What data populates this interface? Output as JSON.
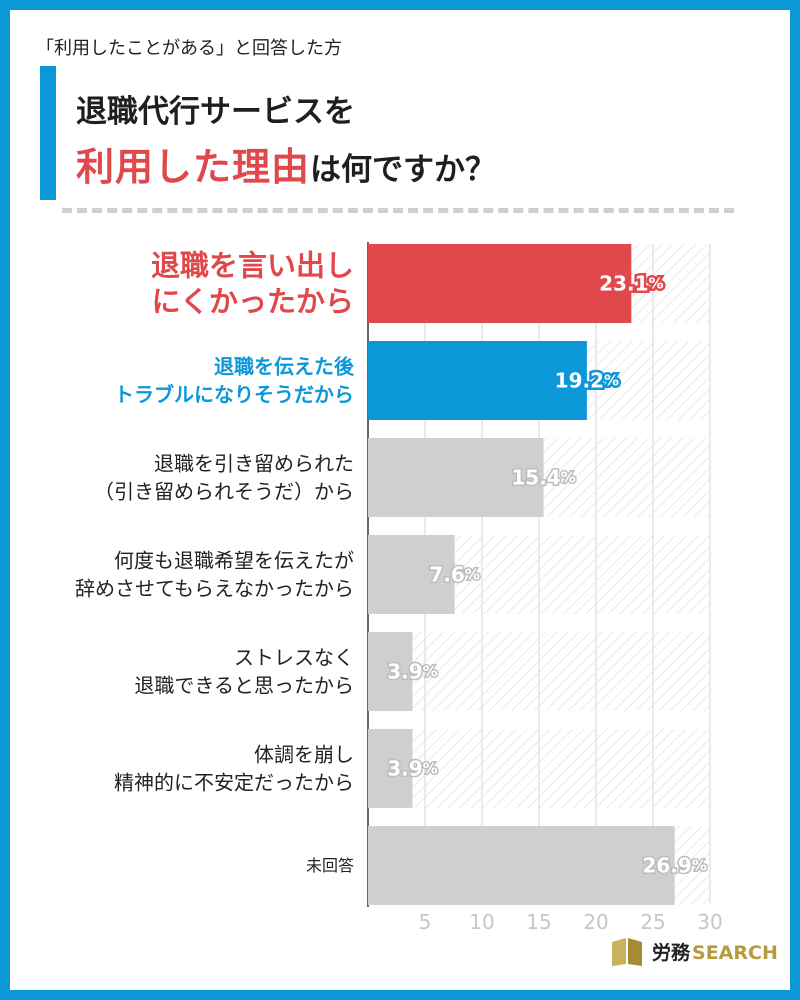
{
  "header": {
    "subtitle": "「利用したことがある」と回答した方",
    "title_line1": "退職代行サービスを",
    "title_line2_highlight": "利用した理由",
    "title_line2_rest": "は何ですか？"
  },
  "colors": {
    "frame": "#0b97d8",
    "highlight_red": "#e0484b",
    "highlight_blue": "#0b97d8",
    "bar_gray": "#cfcfcf"
  },
  "chart_data": {
    "type": "bar",
    "orientation": "horizontal",
    "categories": [
      [
        "退職を言い出し",
        "にくかったから"
      ],
      [
        "退職を伝えた後",
        "トラブルになりそうだから"
      ],
      [
        "退職を引き留められた",
        "（引き留められそうだ）から"
      ],
      [
        "何度も退職希望を伝えたが",
        "辞めさせてもらえなかったから"
      ],
      [
        "ストレスなく",
        "退職できると思ったから"
      ],
      [
        "体調を崩し",
        "精神的に不安定だったから"
      ],
      [
        "未回答"
      ]
    ],
    "values": [
      23.1,
      19.2,
      15.4,
      7.6,
      3.9,
      3.9,
      26.9
    ],
    "value_labels": [
      "23.1",
      "19.2",
      "15.4",
      "7.6",
      "3.9",
      "3.9",
      "26.9"
    ],
    "unit": "%",
    "bar_colors": [
      "#e0484b",
      "#0b97d8",
      "#cfcfcf",
      "#cfcfcf",
      "#cfcfcf",
      "#cfcfcf",
      "#cfcfcf"
    ],
    "label_colors": [
      "#e0484b",
      "#0b97d8",
      "#222222",
      "#222222",
      "#222222",
      "#222222",
      "#222222"
    ],
    "xlim": [
      0,
      30
    ],
    "xticks": [
      "5",
      "10",
      "15",
      "20",
      "25",
      "30"
    ],
    "grid": true
  },
  "logo": {
    "text_jp": "労務",
    "text_en": "SEARCH"
  }
}
